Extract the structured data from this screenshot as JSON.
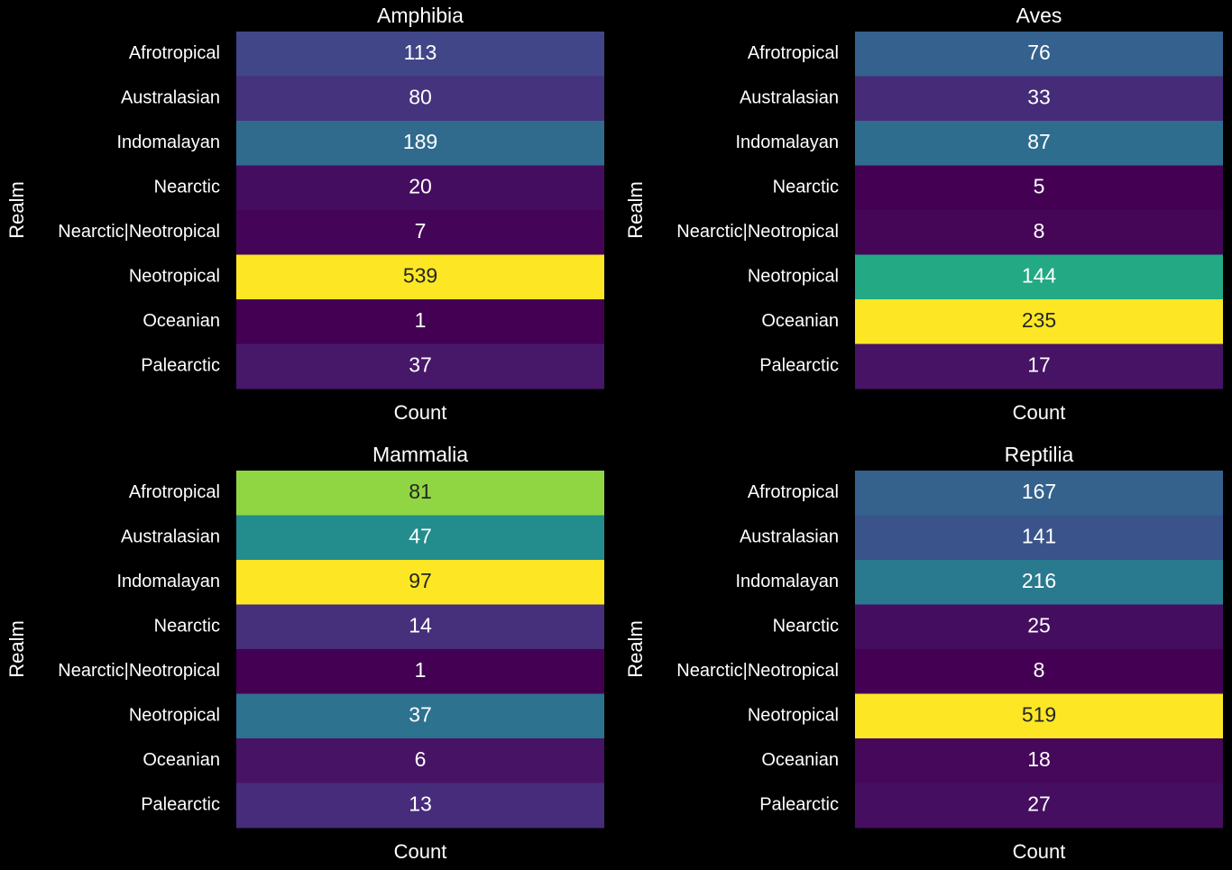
{
  "chart_data": [
    {
      "type": "heatmap",
      "title": "Amphibia",
      "ylabel": "Realm",
      "xlabel": "Count",
      "colormap": "viridis",
      "categories": [
        "Afrotropical",
        "Australasian",
        "Indomalayan",
        "Nearctic",
        "Nearctic|Neotropical",
        "Neotropical",
        "Oceanian",
        "Palearctic"
      ],
      "values": [
        113,
        80,
        189,
        20,
        7,
        539,
        1,
        37
      ]
    },
    {
      "type": "heatmap",
      "title": "Aves",
      "ylabel": "Realm",
      "xlabel": "Count",
      "colormap": "viridis",
      "categories": [
        "Afrotropical",
        "Australasian",
        "Indomalayan",
        "Nearctic",
        "Nearctic|Neotropical",
        "Neotropical",
        "Oceanian",
        "Palearctic"
      ],
      "values": [
        76,
        33,
        87,
        5,
        8,
        144,
        235,
        17
      ]
    },
    {
      "type": "heatmap",
      "title": "Mammalia",
      "ylabel": "Realm",
      "xlabel": "Count",
      "colormap": "viridis",
      "categories": [
        "Afrotropical",
        "Australasian",
        "Indomalayan",
        "Nearctic",
        "Nearctic|Neotropical",
        "Neotropical",
        "Oceanian",
        "Palearctic"
      ],
      "values": [
        81,
        47,
        97,
        14,
        1,
        37,
        6,
        13
      ]
    },
    {
      "type": "heatmap",
      "title": "Reptilia",
      "ylabel": "Realm",
      "xlabel": "Count",
      "colormap": "viridis",
      "categories": [
        "Afrotropical",
        "Australasian",
        "Indomalayan",
        "Nearctic",
        "Nearctic|Neotropical",
        "Neotropical",
        "Oceanian",
        "Palearctic"
      ],
      "values": [
        167,
        141,
        216,
        25,
        8,
        519,
        18,
        27
      ]
    }
  ]
}
